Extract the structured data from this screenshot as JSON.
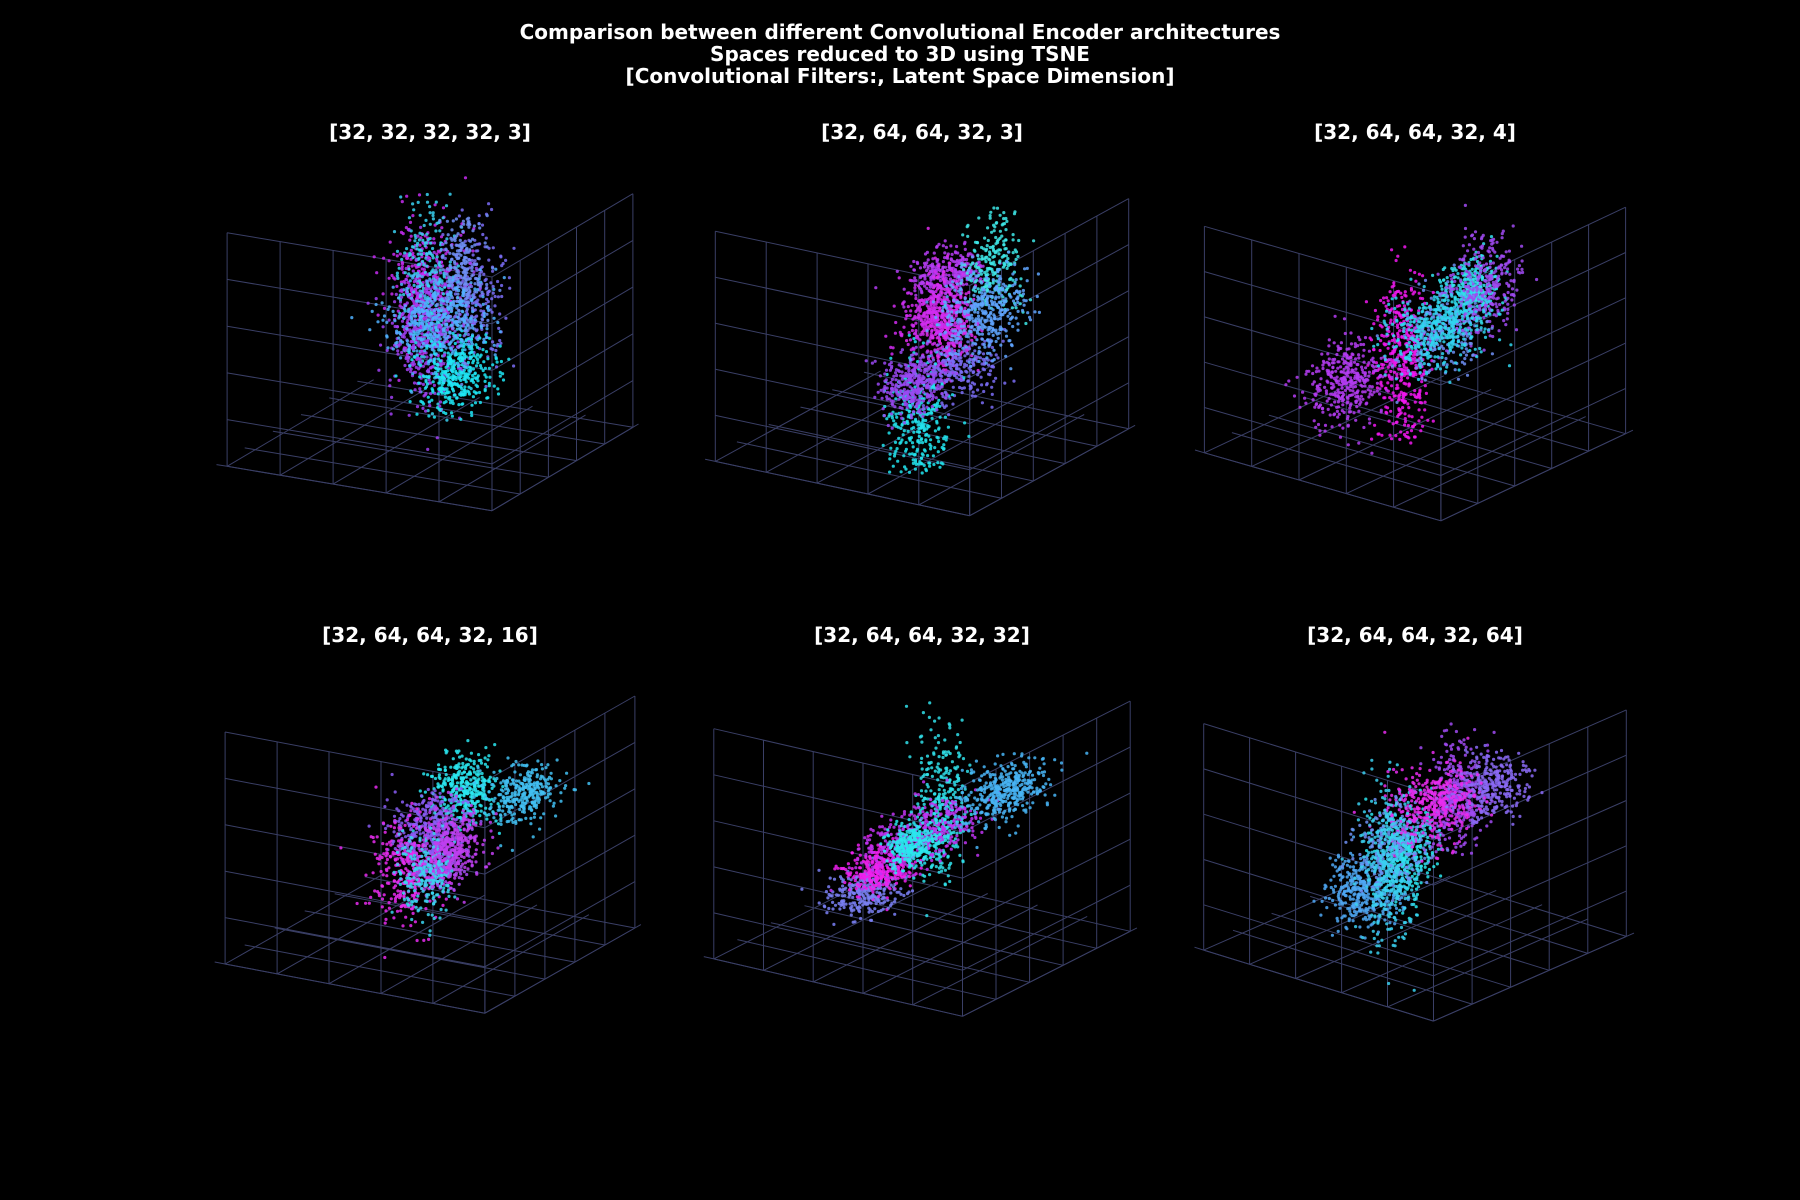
{
  "figure": {
    "title_lines": [
      "Comparison between different Convolutional Encoder architectures",
      "Spaces reduced to 3D using TSNE",
      "[Convolutional Filters:, Latent Space Dimension]"
    ],
    "background": "#000000",
    "grid_color": "#3a3f66",
    "colormap": "cool"
  },
  "chart_data": [
    {
      "type": "scatter",
      "projection": "3d",
      "title": "[32, 32, 32, 32, 3]",
      "grid": true,
      "tick_labels": false,
      "clusters": [
        {
          "color": "#4fb0ff",
          "x": -0.55,
          "y": 0.35,
          "z": 0.35,
          "sx": 0.22,
          "sy": 0.15,
          "sz": 0.18,
          "n": 360
        },
        {
          "color": "#1ee6f5",
          "x": -0.62,
          "y": 0.55,
          "z": -0.05,
          "sx": 0.18,
          "sy": 0.12,
          "sz": 0.14,
          "n": 360
        },
        {
          "color": "#6f8ff5",
          "x": -0.1,
          "y": 0.3,
          "z": 0.55,
          "sx": 0.1,
          "sy": 0.08,
          "sz": 0.28,
          "n": 260
        },
        {
          "color": "#a040f2",
          "x": 0.02,
          "y": -0.05,
          "z": -0.05,
          "sx": 0.14,
          "sy": 0.12,
          "sz": 0.3,
          "n": 360
        },
        {
          "color": "#38d0f0",
          "x": 0.35,
          "y": -0.2,
          "z": 0.15,
          "sx": 0.06,
          "sy": 0.1,
          "sz": 0.4,
          "n": 300
        },
        {
          "color": "#c52cf0",
          "x": 0.62,
          "y": -0.35,
          "z": 0.05,
          "sx": 0.14,
          "sy": 0.12,
          "sz": 0.3,
          "n": 380
        },
        {
          "color": "#7a6cf5",
          "x": 0.25,
          "y": 0.2,
          "z": 0.2,
          "sx": 0.08,
          "sy": 0.1,
          "sz": 0.35,
          "n": 220
        }
      ]
    },
    {
      "type": "scatter",
      "projection": "3d",
      "title": "[32, 64, 64, 32, 3]",
      "grid": true,
      "tick_labels": false,
      "clusters": [
        {
          "color": "#5fa5ff",
          "x": -0.2,
          "y": 0.6,
          "z": 0.35,
          "sx": 0.2,
          "sy": 0.12,
          "sz": 0.18,
          "n": 380
        },
        {
          "color": "#3ee8e8",
          "x": 0.35,
          "y": 0.35,
          "z": 0.5,
          "sx": 0.08,
          "sy": 0.1,
          "sz": 0.22,
          "n": 240
        },
        {
          "color": "#9a48f2",
          "x": -0.85,
          "y": 0.45,
          "z": -0.05,
          "sx": 0.14,
          "sy": 0.1,
          "sz": 0.12,
          "n": 320
        },
        {
          "color": "#22e4ee",
          "x": -0.35,
          "y": 0.2,
          "z": -0.6,
          "sx": 0.1,
          "sy": 0.1,
          "sz": 0.28,
          "n": 300
        },
        {
          "color": "#d02cf0",
          "x": 0.2,
          "y": 0.0,
          "z": 0.02,
          "sx": 0.14,
          "sy": 0.12,
          "sz": 0.14,
          "n": 300
        },
        {
          "color": "#e22cee",
          "x": 0.55,
          "y": -0.15,
          "z": -0.2,
          "sx": 0.1,
          "sy": 0.08,
          "sz": 0.22,
          "n": 300
        },
        {
          "color": "#b43cf2",
          "x": 0.8,
          "y": -0.3,
          "z": 0.12,
          "sx": 0.18,
          "sy": 0.1,
          "sz": 0.1,
          "n": 300
        },
        {
          "color": "#7a6cf5",
          "x": 0.05,
          "y": 0.25,
          "z": -0.3,
          "sx": 0.18,
          "sy": 0.12,
          "sz": 0.12,
          "n": 240
        }
      ]
    },
    {
      "type": "scatter",
      "projection": "3d",
      "title": "[32, 64, 64, 32, 4]",
      "grid": true,
      "tick_labels": false,
      "clusters": [
        {
          "color": "#2fd6f0",
          "x": -0.55,
          "y": 0.6,
          "z": 0.4,
          "sx": 0.25,
          "sy": 0.12,
          "sz": 0.14,
          "n": 420
        },
        {
          "color": "#a04af2",
          "x": 0.3,
          "y": 0.35,
          "z": 0.35,
          "sx": 0.15,
          "sy": 0.1,
          "sz": 0.22,
          "n": 320
        },
        {
          "color": "#34e2ec",
          "x": 0.75,
          "y": -0.1,
          "z": 0.05,
          "sx": 0.12,
          "sy": 0.08,
          "sz": 0.12,
          "n": 300
        },
        {
          "color": "#f018ee",
          "x": 0.05,
          "y": -0.15,
          "z": -0.3,
          "sx": 0.1,
          "sy": 0.1,
          "sz": 0.35,
          "n": 420
        },
        {
          "color": "#b43cf2",
          "x": -0.45,
          "y": -0.25,
          "z": -0.35,
          "sx": 0.16,
          "sy": 0.1,
          "sz": 0.18,
          "n": 360
        },
        {
          "color": "#6f8ff5",
          "x": 0.1,
          "y": 0.15,
          "z": 0.0,
          "sx": 0.18,
          "sy": 0.12,
          "sz": 0.16,
          "n": 260
        }
      ]
    },
    {
      "type": "scatter",
      "projection": "3d",
      "title": "[32, 64, 64, 32, 16]",
      "grid": true,
      "tick_labels": false,
      "clusters": [
        {
          "color": "#42c0f2",
          "x": 0.05,
          "y": 0.7,
          "z": 0.45,
          "sx": 0.18,
          "sy": 0.1,
          "sz": 0.12,
          "n": 320
        },
        {
          "color": "#bf3ef0",
          "x": -0.55,
          "y": 0.5,
          "z": 0.2,
          "sx": 0.12,
          "sy": 0.1,
          "sz": 0.16,
          "n": 300
        },
        {
          "color": "#3ad4f0",
          "x": -0.6,
          "y": 0.3,
          "z": -0.1,
          "sx": 0.1,
          "sy": 0.1,
          "sz": 0.2,
          "n": 220
        },
        {
          "color": "#e82cee",
          "x": -0.3,
          "y": 0.0,
          "z": -0.25,
          "sx": 0.14,
          "sy": 0.12,
          "sz": 0.22,
          "n": 300
        },
        {
          "color": "#8a5cf5",
          "x": 0.02,
          "y": 0.0,
          "z": 0.0,
          "sx": 0.15,
          "sy": 0.12,
          "sz": 0.16,
          "n": 360
        },
        {
          "color": "#2ae6f0",
          "x": 0.62,
          "y": -0.1,
          "z": 0.1,
          "sx": 0.12,
          "sy": 0.1,
          "sz": 0.14,
          "n": 360
        },
        {
          "color": "#a94cf2",
          "x": 0.45,
          "y": -0.2,
          "z": -0.55,
          "sx": 0.1,
          "sy": 0.08,
          "sz": 0.08,
          "n": 200
        }
      ]
    },
    {
      "type": "scatter",
      "projection": "3d",
      "title": "[32, 64, 64, 32, 32]",
      "grid": true,
      "tick_labels": false,
      "clusters": [
        {
          "color": "#2ae6ee",
          "x": -0.85,
          "y": 0.5,
          "z": 0.3,
          "sx": 0.15,
          "sy": 0.08,
          "sz": 0.1,
          "n": 300
        },
        {
          "color": "#48b4f5",
          "x": 0.1,
          "y": 0.6,
          "z": 0.45,
          "sx": 0.22,
          "sy": 0.1,
          "sz": 0.12,
          "n": 400
        },
        {
          "color": "#c034f2",
          "x": 0.0,
          "y": 0.0,
          "z": -0.05,
          "sx": 0.3,
          "sy": 0.12,
          "sz": 0.1,
          "n": 420
        },
        {
          "color": "#f020ee",
          "x": -0.35,
          "y": -0.1,
          "z": -0.25,
          "sx": 0.15,
          "sy": 0.1,
          "sz": 0.08,
          "n": 300
        },
        {
          "color": "#7a80f5",
          "x": -0.4,
          "y": -0.2,
          "z": -0.45,
          "sx": 0.15,
          "sy": 0.1,
          "sz": 0.08,
          "n": 260
        },
        {
          "color": "#30e0ea",
          "x": 0.7,
          "y": -0.3,
          "z": -0.1,
          "sx": 0.08,
          "sy": 0.08,
          "sz": 0.3,
          "n": 320
        }
      ]
    },
    {
      "type": "scatter",
      "projection": "3d",
      "title": "[32, 64, 64, 32, 64]",
      "grid": true,
      "tick_labels": false,
      "clusters": [
        {
          "color": "#3ad0f0",
          "x": -0.75,
          "y": 0.4,
          "z": 0.1,
          "sx": 0.08,
          "sy": 0.1,
          "sz": 0.35,
          "n": 360
        },
        {
          "color": "#e82cee",
          "x": -0.05,
          "y": 0.2,
          "z": 0.3,
          "sx": 0.18,
          "sy": 0.12,
          "sz": 0.16,
          "n": 380
        },
        {
          "color": "#8a6af5",
          "x": 0.3,
          "y": 0.4,
          "z": 0.4,
          "sx": 0.15,
          "sy": 0.1,
          "sz": 0.12,
          "n": 300
        },
        {
          "color": "#a04af2",
          "x": 0.55,
          "y": -0.1,
          "z": 0.05,
          "sx": 0.1,
          "sy": 0.08,
          "sz": 0.22,
          "n": 320
        },
        {
          "color": "#2ae6ee",
          "x": 0.2,
          "y": -0.25,
          "z": -0.35,
          "sx": 0.1,
          "sy": 0.08,
          "sz": 0.2,
          "n": 320
        },
        {
          "color": "#4fa8f5",
          "x": -0.35,
          "y": -0.15,
          "z": -0.45,
          "sx": 0.14,
          "sy": 0.1,
          "sz": 0.16,
          "n": 360
        },
        {
          "color": "#6f8ff5",
          "x": -0.2,
          "y": 0.0,
          "z": -0.05,
          "sx": 0.15,
          "sy": 0.1,
          "sz": 0.18,
          "n": 260
        }
      ]
    }
  ]
}
